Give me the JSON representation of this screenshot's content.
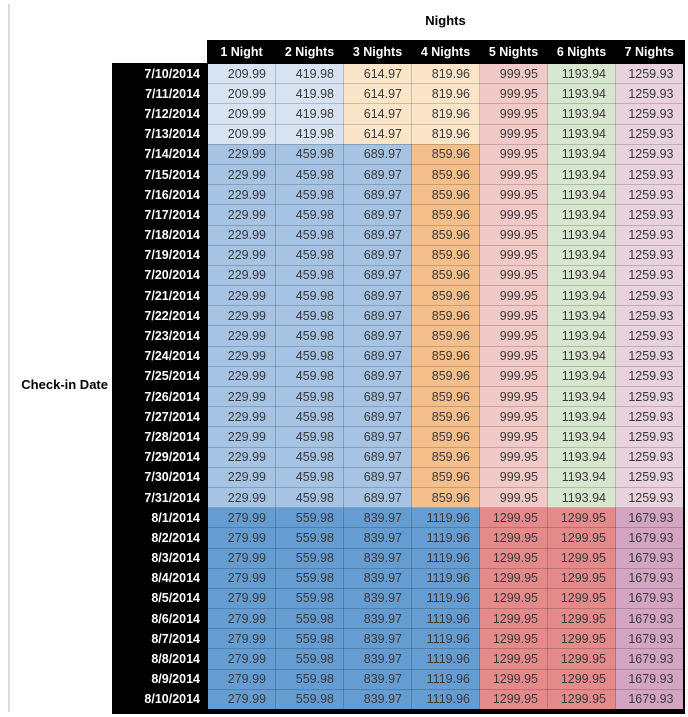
{
  "table": {
    "title": "Nights",
    "row_axis_label": "Check-in Date"
  },
  "chart_data": {
    "type": "table",
    "title": "Nights",
    "row_header": "Check-in Date",
    "columns": [
      "1 Night",
      "2 Nights",
      "3 Nights",
      "4 Nights",
      "5 Nights",
      "6 Nights",
      "7 Nights"
    ],
    "sections": [
      {
        "name": "early-july",
        "dates": [
          "7/10/2014",
          "7/11/2014",
          "7/12/2014",
          "7/13/2014"
        ],
        "values": [
          209.99,
          419.98,
          614.97,
          819.96,
          999.95,
          1193.94,
          1259.93
        ],
        "cell_colors": [
          "#D7E3F0",
          "#D7E3F0",
          "#FBE5C8",
          "#FBE5C8",
          "#F1CAC8",
          "#D7E6CE",
          "#E8D2DE"
        ]
      },
      {
        "name": "mid-late-july",
        "dates": [
          "7/14/2014",
          "7/15/2014",
          "7/16/2014",
          "7/17/2014",
          "7/18/2014",
          "7/19/2014",
          "7/20/2014",
          "7/21/2014",
          "7/22/2014",
          "7/23/2014",
          "7/24/2014",
          "7/25/2014",
          "7/26/2014",
          "7/27/2014",
          "7/28/2014",
          "7/29/2014",
          "7/30/2014",
          "7/31/2014"
        ],
        "values": [
          229.99,
          459.98,
          689.97,
          859.96,
          999.95,
          1193.94,
          1259.93
        ],
        "cell_colors": [
          "#A6C3E4",
          "#A6C3E4",
          "#A6C3E4",
          "#F5BF8B",
          "#F1CAC8",
          "#D7E6CE",
          "#E8D2DE"
        ]
      },
      {
        "name": "august",
        "dates": [
          "8/1/2014",
          "8/2/2014",
          "8/3/2014",
          "8/4/2014",
          "8/5/2014",
          "8/6/2014",
          "8/7/2014",
          "8/8/2014",
          "8/9/2014",
          "8/10/2014"
        ],
        "values": [
          279.99,
          559.98,
          839.97,
          1119.96,
          1299.95,
          1299.95,
          1679.93
        ],
        "cell_colors": [
          "#659DD2",
          "#659DD2",
          "#659DD2",
          "#659DD2",
          "#E48A8B",
          "#E48A8B",
          "#D4A5C2"
        ]
      }
    ],
    "colors": {
      "header_bg": "#000000",
      "header_text": "#ffffff",
      "value_text": "#3a3a3a",
      "grid": "rgba(0,0,0,0.18)",
      "side_rule": "#d9d9d9"
    },
    "layout_hints": {
      "rows_total": 32,
      "columns_total": 7,
      "title_position": "top-center",
      "row_axis_label_position": "middle-left"
    }
  }
}
